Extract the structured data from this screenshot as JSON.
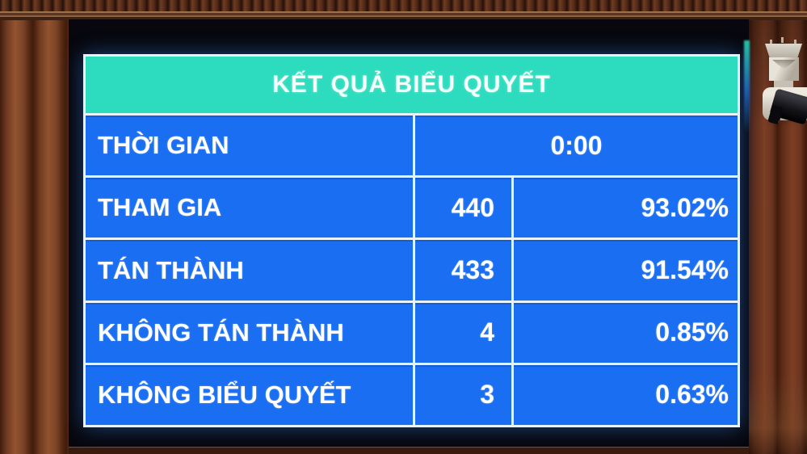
{
  "board": {
    "title": "KẾT QUẢ BIỂU QUYẾT",
    "time_row": {
      "label": "THỜI GIAN",
      "value": "0:00"
    },
    "rows": [
      {
        "label": "THAM GIA",
        "count": "440",
        "percent": "93.02%"
      },
      {
        "label": "TÁN THÀNH",
        "count": "433",
        "percent": "91.54%"
      },
      {
        "label": "KHÔNG TÁN THÀNH",
        "count": "4",
        "percent": "0.85%"
      },
      {
        "label": "KHÔNG BIỂU QUYẾT",
        "count": "3",
        "percent": "0.63%"
      }
    ],
    "colors": {
      "header_bg": "#2ddcbe",
      "cell_bg": "#1a6ef2",
      "grid": "#e9f2f9",
      "text": "#ffffff"
    }
  },
  "scene": {
    "objects": {
      "camera": "security-camera",
      "wall": "wooden-slat-wall"
    }
  }
}
